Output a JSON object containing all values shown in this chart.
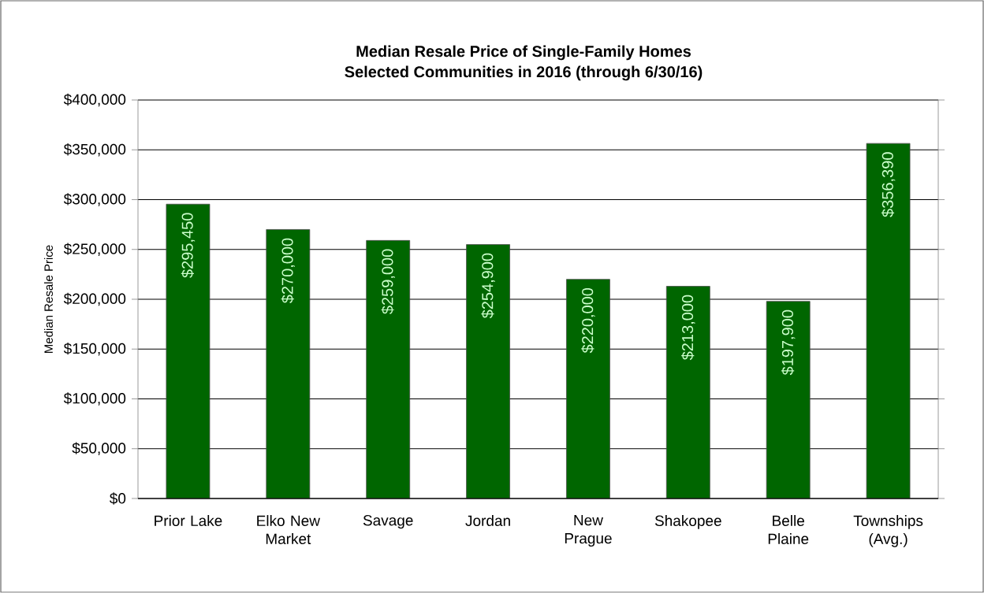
{
  "chart_data": {
    "type": "bar",
    "title": "**Median Resale Price of Single-Family Homes**",
    "subtitle": "**Selected Communities in 2016 (through 6/30/16)**",
    "ylabel": "Median Resale Price",
    "categories": [
      "Prior Lake",
      "Elko New Market",
      "Savage",
      "Jordan",
      "New Prague",
      "Shakopee",
      "Belle Plaine",
      "Townships (Avg.)"
    ],
    "values": [
      295450,
      270000,
      259000,
      254900,
      220000,
      213000,
      197900,
      356390
    ],
    "value_labels": [
      "$295,450",
      "$270,000",
      "$259,000",
      "$254,900",
      "$220,000",
      "$213,000",
      "$197,900",
      "$356,390"
    ],
    "color": "#006600",
    "ylim": [
      0,
      400000
    ],
    "yticks": [
      {
        "value": 0,
        "label": "$0"
      },
      {
        "value": 50000,
        "label": "$50,000"
      },
      {
        "value": 100000,
        "label": "$100,000"
      },
      {
        "value": 150000,
        "label": "$150,000"
      },
      {
        "value": 200000,
        "label": "$200,000"
      },
      {
        "value": 250000,
        "label": "$250,000"
      },
      {
        "value": 300000,
        "label": "$300,000"
      },
      {
        "value": 350000,
        "label": "$350,000"
      },
      {
        "value": 400000,
        "label": "$400,000"
      }
    ],
    "grid": "y"
  }
}
